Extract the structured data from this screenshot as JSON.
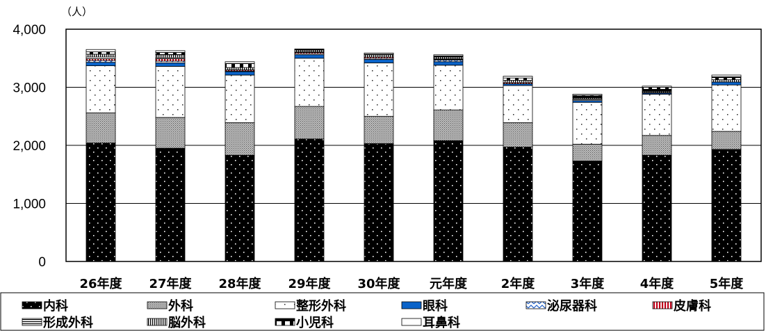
{
  "chart_data": {
    "type": "bar",
    "stacked": true,
    "unit_label": "（人）",
    "categories": [
      "26年度",
      "27年度",
      "28年度",
      "29年度",
      "30年度",
      "元年度",
      "2年度",
      "3年度",
      "4年度",
      "5年度"
    ],
    "ylim": [
      0,
      4000
    ],
    "yticks": [
      0,
      1000,
      2000,
      3000,
      4000
    ],
    "ytick_labels": [
      "0",
      "1,000",
      "2,000",
      "3,000",
      "4,000"
    ],
    "grid": true,
    "legend_position": "bottom",
    "series": [
      {
        "name": "内科",
        "pattern": "dots-on-black",
        "values": [
          2040,
          1950,
          1830,
          2110,
          2030,
          2080,
          1970,
          1730,
          1830,
          1930
        ]
      },
      {
        "name": "外科",
        "pattern": "crosshatch",
        "values": [
          520,
          530,
          560,
          560,
          470,
          530,
          420,
          290,
          340,
          310
        ]
      },
      {
        "name": "整形外科",
        "pattern": "sparse-dots",
        "values": [
          810,
          880,
          820,
          830,
          920,
          770,
          640,
          720,
          710,
          800
        ]
      },
      {
        "name": "眼科",
        "pattern": "solid-blue",
        "values": [
          60,
          60,
          60,
          60,
          60,
          60,
          30,
          30,
          20,
          50
        ]
      },
      {
        "name": "泌尿器科",
        "pattern": "blue-zigzag",
        "values": [
          30,
          30,
          10,
          20,
          20,
          30,
          0,
          20,
          0,
          0
        ]
      },
      {
        "name": "皮膚科",
        "pattern": "red-vertical",
        "values": [
          30,
          40,
          20,
          20,
          20,
          10,
          20,
          10,
          0,
          0
        ]
      },
      {
        "name": "形成外科",
        "pattern": "horizontal",
        "values": [
          30,
          20,
          0,
          10,
          0,
          10,
          0,
          0,
          10,
          0
        ]
      },
      {
        "name": "脳外科",
        "pattern": "vertical",
        "values": [
          50,
          50,
          40,
          30,
          40,
          30,
          40,
          20,
          20,
          40
        ]
      },
      {
        "name": "小児科",
        "pattern": "brick",
        "values": [
          40,
          40,
          70,
          10,
          10,
          20,
          40,
          40,
          70,
          50
        ]
      },
      {
        "name": "耳鼻科",
        "pattern": "open-bar",
        "values": [
          40,
          30,
          30,
          10,
          20,
          20,
          30,
          20,
          20,
          30
        ]
      }
    ]
  }
}
